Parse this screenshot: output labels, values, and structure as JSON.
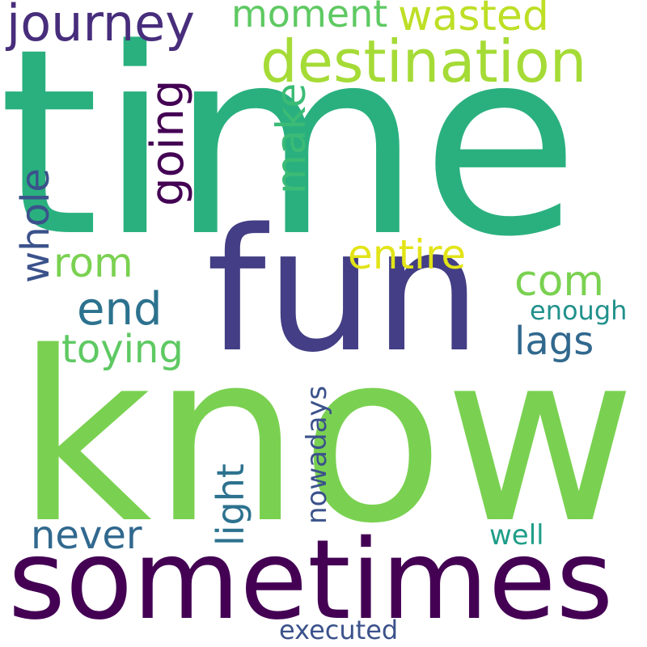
{
  "words": [
    {
      "text": "time",
      "color": "#2ab07f",
      "rotated": false
    },
    {
      "text": "fun",
      "color": "#433e85",
      "rotated": false
    },
    {
      "text": "know",
      "color": "#7ad151",
      "rotated": false
    },
    {
      "text": "sometimes",
      "color": "#440154",
      "rotated": false
    },
    {
      "text": "destination",
      "color": "#a5db36",
      "rotated": false
    },
    {
      "text": "journey",
      "color": "#472d7b",
      "rotated": false
    },
    {
      "text": "moment",
      "color": "#5ec962",
      "rotated": false
    },
    {
      "text": "wasted",
      "color": "#bddf26",
      "rotated": false
    },
    {
      "text": "going",
      "color": "#440154",
      "rotated": true
    },
    {
      "text": "make",
      "color": "#3bbb75",
      "rotated": true
    },
    {
      "text": "whole",
      "color": "#3b528b",
      "rotated": true
    },
    {
      "text": "rom",
      "color": "#7ad151",
      "rotated": false
    },
    {
      "text": "entire",
      "color": "#e2e418",
      "rotated": false
    },
    {
      "text": "com",
      "color": "#7ad151",
      "rotated": false
    },
    {
      "text": "end",
      "color": "#2c728e",
      "rotated": false
    },
    {
      "text": "enough",
      "color": "#21918c",
      "rotated": false
    },
    {
      "text": "lags",
      "color": "#31688e",
      "rotated": false
    },
    {
      "text": "toying",
      "color": "#5ec962",
      "rotated": false
    },
    {
      "text": "light",
      "color": "#2c728e",
      "rotated": true
    },
    {
      "text": "nowadays",
      "color": "#3b528b",
      "rotated": true
    },
    {
      "text": "never",
      "color": "#31688e",
      "rotated": false
    },
    {
      "text": "well",
      "color": "#1f9e89",
      "rotated": false
    },
    {
      "text": "executed",
      "color": "#3b528b",
      "rotated": false
    }
  ]
}
